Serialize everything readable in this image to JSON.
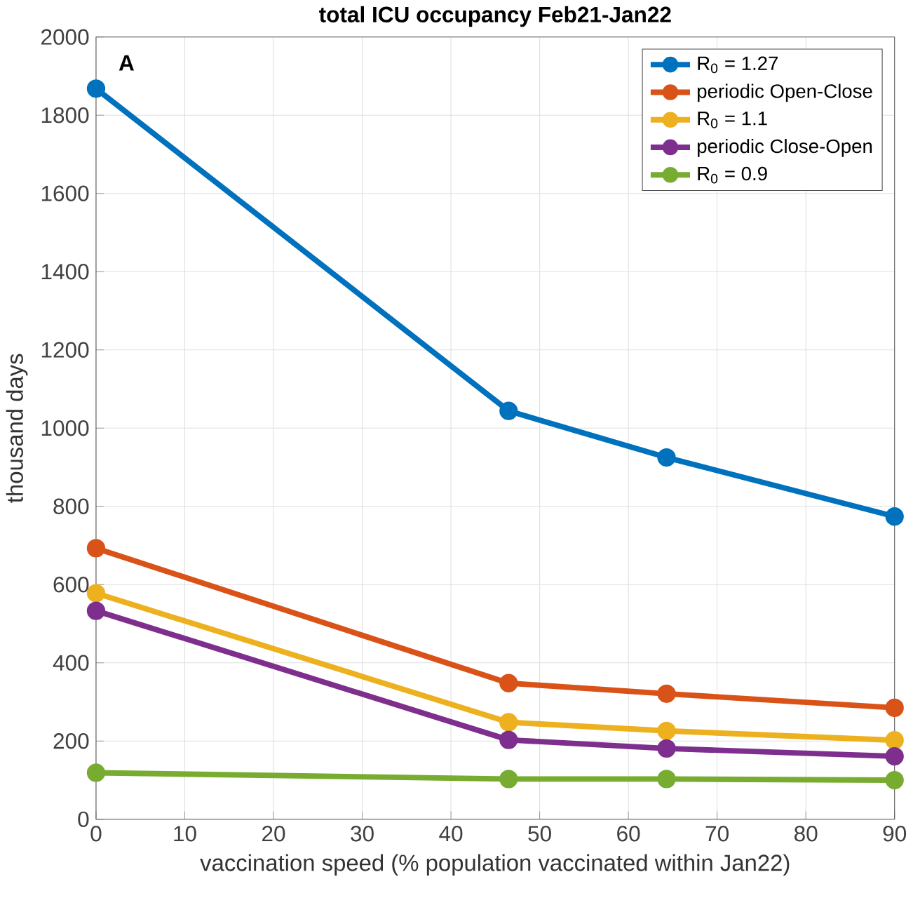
{
  "chart_data": {
    "type": "line",
    "title": "total ICU occupancy Feb21-Jan22",
    "xlabel": "vaccination speed (% population vaccinated within Jan22)",
    "ylabel": "thousand days",
    "x": [
      0,
      46.5,
      64.3,
      90
    ],
    "series": [
      {
        "name": "R$_{0}$ = 1.27",
        "color": "#0072bd",
        "values": [
          1868,
          1044,
          925,
          774
        ]
      },
      {
        "name": "periodic Open-Close",
        "color": "#d95319",
        "values": [
          693,
          348,
          321,
          285
        ]
      },
      {
        "name": "R$_{0}$ = 1.1",
        "color": "#edb120",
        "values": [
          578,
          248,
          226,
          202
        ]
      },
      {
        "name": "periodic Close-Open",
        "color": "#7e2f8e",
        "values": [
          533,
          203,
          181,
          161
        ]
      },
      {
        "name": "R$_{0}$ = 0.9",
        "color": "#77ac30",
        "values": [
          119,
          103,
          103,
          100
        ]
      }
    ],
    "annotations": [
      "A"
    ],
    "xlim": [
      0,
      90
    ],
    "ylim": [
      0,
      2000
    ],
    "xticks": [
      0,
      10,
      20,
      30,
      40,
      50,
      60,
      70,
      80,
      90
    ],
    "yticks": [
      0,
      200,
      400,
      600,
      800,
      1000,
      1200,
      1400,
      1600,
      1800,
      2000
    ],
    "grid": true,
    "legend": "top right",
    "marker": "circle",
    "line_style": "solid"
  }
}
